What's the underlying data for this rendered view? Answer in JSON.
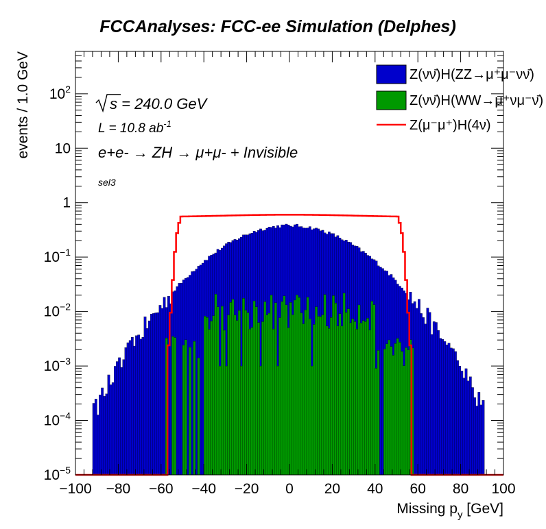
{
  "chart_data": {
    "type": "bar",
    "title": "FCCAnalyses: FCC-ee Simulation (Delphes)",
    "xlabel_main": "Missing p",
    "xlabel_sub": "y",
    "xlabel_unit": " [GeV]",
    "ylabel": "events / 1.0 GeV",
    "xlim": [
      -100,
      100
    ],
    "ylim": [
      1e-05,
      600
    ],
    "y_log_scale": true,
    "x_ticks": [
      -100,
      -80,
      -60,
      -40,
      -20,
      0,
      20,
      40,
      60,
      80,
      100
    ],
    "x_tick_labels": [
      "−100",
      "−80",
      "−60",
      "−40",
      "−20",
      "0",
      "20",
      "40",
      "60",
      "80",
      "100"
    ],
    "y_ticks": [
      {
        "value": 100,
        "base": "10",
        "exp": "2"
      },
      {
        "value": 10,
        "base": "10",
        "exp": ""
      },
      {
        "value": 1,
        "base": "1",
        "exp": ""
      },
      {
        "value": 0.1,
        "base": "10",
        "exp": "−1"
      },
      {
        "value": 0.01,
        "base": "10",
        "exp": "−2"
      },
      {
        "value": 0.001,
        "base": "10",
        "exp": "−3"
      },
      {
        "value": 0.0001,
        "base": "10",
        "exp": "−4"
      },
      {
        "value": 1e-05,
        "base": "10",
        "exp": "−5"
      }
    ],
    "annotations": {
      "sqrt_s": "s = 240.0 GeV",
      "lumi_text": "L = 10.8 ab",
      "lumi_exp": "-1",
      "process": "e+e- → ZH → μ+μ- + Invisible",
      "selection": "sel3"
    },
    "legend_position": "top-right",
    "legend": [
      {
        "label": "Z(νν̄)H(ZZ→μ⁺μ⁻νν̄)",
        "color": "#0000cc",
        "style": "fill"
      },
      {
        "label": "Z(νν̄)H(WW→μ⁺νμ⁻ν̄)",
        "color": "#009900",
        "style": "fill"
      },
      {
        "label": "Z(μ⁻μ⁺)H(4ν)",
        "color": "#ff0000",
        "style": "line"
      }
    ],
    "series": [
      {
        "name": "Z(νν̄)H(ZZ→μ⁺μ⁻νν̄)",
        "color": "#0000cc",
        "shape": "gaussian",
        "peak": 0.38,
        "sigma": 23,
        "x_range": [
          -92,
          91
        ]
      },
      {
        "name": "Z(νν̄)H(WW→μ⁺νμ⁻ν̄)",
        "color": "#009900",
        "shape": "noisy-plateau",
        "level": 0.01,
        "x_range": [
          -58,
          58
        ]
      },
      {
        "name": "Z(μ⁻μ⁺)H(4ν)",
        "color": "#ff0000",
        "shape": "plateau",
        "level": 0.6,
        "x_range": [
          -57,
          57
        ],
        "baseline": 9e-06
      }
    ]
  }
}
